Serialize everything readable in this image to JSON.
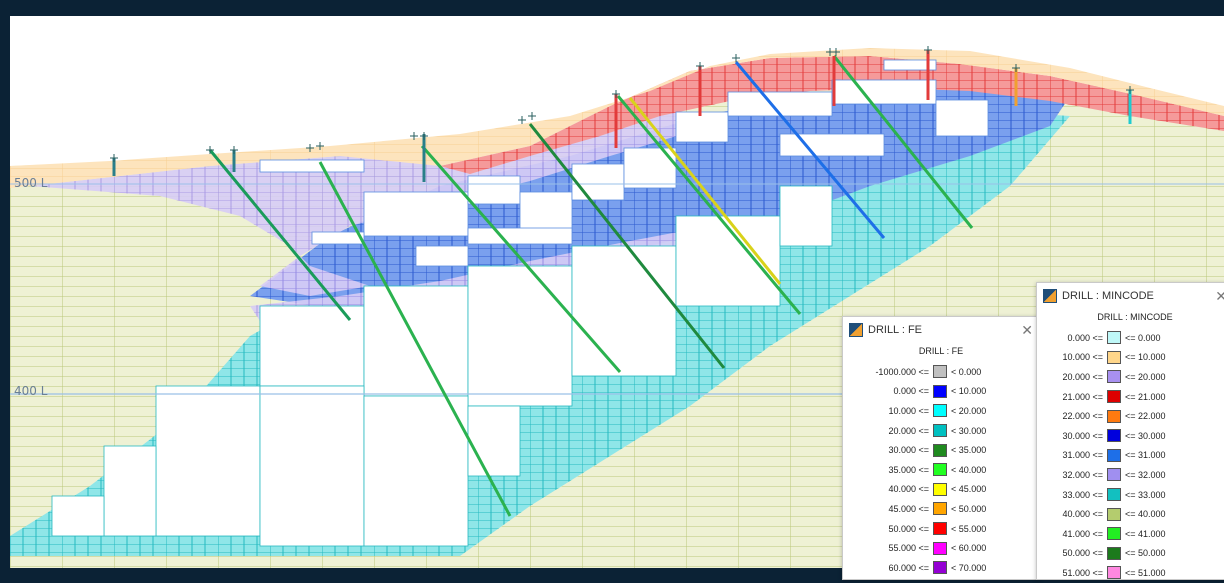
{
  "section": {
    "levels": [
      "500 L",
      "400 L"
    ]
  },
  "colors": {
    "frame": "#0b2235",
    "overburden": "#fbdcae",
    "mincode_red": "#e62e2e",
    "mincode_purple": "#b9a6ee",
    "mincode_blue": "#3b63d6",
    "mincode_cyan": "#18c4c8",
    "mincode_olive": "#c9d48a"
  },
  "legend_fe": {
    "title": "DRILL : FE",
    "heading": "DRILL : FE",
    "rows": [
      {
        "low": "-1000.000 <=",
        "color": "#c0c0c0",
        "high": "< 0.000"
      },
      {
        "low": "0.000 <=",
        "color": "#0000ff",
        "high": "< 10.000"
      },
      {
        "low": "10.000 <=",
        "color": "#00ffff",
        "high": "< 20.000"
      },
      {
        "low": "20.000 <=",
        "color": "#00c0c0",
        "high": "< 30.000"
      },
      {
        "low": "30.000 <=",
        "color": "#1f8a1f",
        "high": "< 35.000"
      },
      {
        "low": "35.000 <=",
        "color": "#22ff22",
        "high": "< 40.000"
      },
      {
        "low": "40.000 <=",
        "color": "#ffff00",
        "high": "< 45.000"
      },
      {
        "low": "45.000 <=",
        "color": "#ffa500",
        "high": "< 50.000"
      },
      {
        "low": "50.000 <=",
        "color": "#ff0000",
        "high": "< 55.000"
      },
      {
        "low": "55.000 <=",
        "color": "#ff00ff",
        "high": "< 60.000"
      },
      {
        "low": "60.000 <=",
        "color": "#9400d3",
        "high": "< 70.000"
      }
    ]
  },
  "legend_mincode": {
    "title": "DRILL : MINCODE",
    "heading": "DRILL : MINCODE",
    "rows": [
      {
        "low": "0.000 <=",
        "color": "#bff8f8",
        "high": "<= 0.000"
      },
      {
        "low": "10.000 <=",
        "color": "#ffd68a",
        "high": "<= 10.000"
      },
      {
        "low": "20.000 <=",
        "color": "#a890f0",
        "high": "<= 20.000"
      },
      {
        "low": "21.000 <=",
        "color": "#dd0000",
        "high": "<= 21.000"
      },
      {
        "low": "22.000 <=",
        "color": "#ff7a10",
        "high": "<= 22.000"
      },
      {
        "low": "30.000 <=",
        "color": "#0000dd",
        "high": "<= 30.000"
      },
      {
        "low": "31.000 <=",
        "color": "#1e6fe8",
        "high": "<= 31.000"
      },
      {
        "low": "32.000 <=",
        "color": "#a08ff0",
        "high": "<= 32.000"
      },
      {
        "low": "33.000 <=",
        "color": "#12c0c0",
        "high": "<= 33.000"
      },
      {
        "low": "40.000 <=",
        "color": "#b4cc6e",
        "high": "<= 40.000"
      },
      {
        "low": "41.000 <=",
        "color": "#22ee22",
        "high": "<= 41.000"
      },
      {
        "low": "50.000 <=",
        "color": "#1c7a1c",
        "high": "<= 50.000"
      },
      {
        "low": "51.000 <=",
        "color": "#ff88e0",
        "high": "<= 51.000"
      }
    ]
  },
  "drill_traces": [
    {
      "from_fe": 0,
      "to_fe": 0
    },
    {
      "from_fe": 0,
      "to_fe": 0
    }
  ]
}
